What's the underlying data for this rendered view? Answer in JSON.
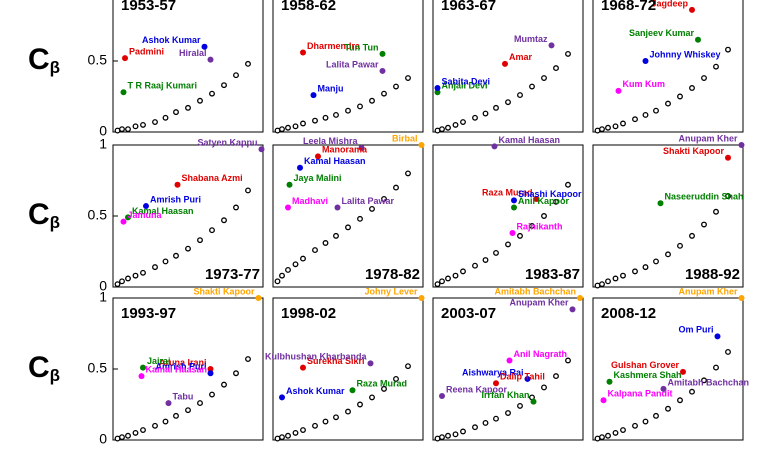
{
  "chart_data": [
    {
      "type": "scatter",
      "title": "1953-57",
      "ylabel": "C",
      "ylabel_sub": "β",
      "xlim": [
        0,
        1
      ],
      "ylim": [
        0,
        1
      ],
      "yticks": [
        0,
        0.5
      ],
      "x": [
        0.03,
        0.06,
        0.1,
        0.15,
        0.2,
        0.28,
        0.35,
        0.42,
        0.5,
        0.58,
        0.66,
        0.74,
        0.82,
        0.9
      ],
      "values": [
        0.01,
        0.02,
        0.02,
        0.04,
        0.05,
        0.07,
        0.1,
        0.14,
        0.17,
        0.22,
        0.27,
        0.33,
        0.4,
        0.48
      ],
      "series": [
        {
          "name": "Padmini",
          "color": "#e00000",
          "x": [
            0.08
          ],
          "values": [
            0.52
          ]
        },
        {
          "name": "Ashok Kumar",
          "color": "#0000e0",
          "x": [
            0.61
          ],
          "values": [
            0.6
          ]
        },
        {
          "name": "Hiralal",
          "color": "#7030a0",
          "x": [
            0.65
          ],
          "values": [
            0.51
          ]
        },
        {
          "name": "T R Raaj Kumari",
          "color": "#008000",
          "x": [
            0.07
          ],
          "values": [
            0.28
          ]
        }
      ]
    },
    {
      "type": "scatter",
      "title": "1958-62",
      "xlim": [
        0,
        1
      ],
      "ylim": [
        0,
        1
      ],
      "x": [
        0.03,
        0.06,
        0.1,
        0.15,
        0.2,
        0.28,
        0.35,
        0.42,
        0.5,
        0.58,
        0.66,
        0.74,
        0.82,
        0.9
      ],
      "values": [
        0.01,
        0.02,
        0.03,
        0.04,
        0.06,
        0.08,
        0.1,
        0.12,
        0.15,
        0.18,
        0.22,
        0.27,
        0.32,
        0.38
      ],
      "series": [
        {
          "name": "Dharmendra",
          "color": "#e00000",
          "x": [
            0.2
          ],
          "values": [
            0.56
          ]
        },
        {
          "name": "Tun Tun",
          "color": "#008000",
          "x": [
            0.73
          ],
          "values": [
            0.55
          ]
        },
        {
          "name": "Lalita Pawar",
          "color": "#7030a0",
          "x": [
            0.73
          ],
          "values": [
            0.43
          ]
        },
        {
          "name": "Manju",
          "color": "#0000e0",
          "x": [
            0.27
          ],
          "values": [
            0.26
          ]
        }
      ]
    },
    {
      "type": "scatter",
      "title": "1963-67",
      "xlim": [
        0,
        1
      ],
      "ylim": [
        0,
        1
      ],
      "x": [
        0.03,
        0.06,
        0.1,
        0.15,
        0.2,
        0.28,
        0.35,
        0.42,
        0.5,
        0.58,
        0.66,
        0.74,
        0.82,
        0.9
      ],
      "values": [
        0.01,
        0.02,
        0.03,
        0.05,
        0.07,
        0.1,
        0.13,
        0.17,
        0.21,
        0.26,
        0.32,
        0.38,
        0.45,
        0.55
      ],
      "series": [
        {
          "name": "Amar",
          "color": "#e00000",
          "x": [
            0.48
          ],
          "values": [
            0.48
          ]
        },
        {
          "name": "Mumtaz",
          "color": "#7030a0",
          "x": [
            0.79
          ],
          "values": [
            0.61
          ]
        },
        {
          "name": "Anjali Devi",
          "color": "#008000",
          "x": [
            0.03
          ],
          "values": [
            0.28
          ]
        },
        {
          "name": "Sabita Devi",
          "color": "#0000e0",
          "x": [
            0.03
          ],
          "values": [
            0.31
          ]
        }
      ]
    },
    {
      "type": "scatter",
      "title": "1968-72",
      "xlim": [
        0,
        1
      ],
      "ylim": [
        0,
        1
      ],
      "x": [
        0.03,
        0.06,
        0.1,
        0.15,
        0.2,
        0.28,
        0.35,
        0.42,
        0.5,
        0.58,
        0.66,
        0.74,
        0.82,
        0.9
      ],
      "values": [
        0.01,
        0.02,
        0.03,
        0.04,
        0.06,
        0.09,
        0.12,
        0.15,
        0.2,
        0.25,
        0.31,
        0.38,
        0.46,
        0.58
      ],
      "series": [
        {
          "name": "Jagdeep",
          "color": "#e00000",
          "x": [
            0.66
          ],
          "values": [
            0.86
          ]
        },
        {
          "name": "Sanjeev Kumar",
          "color": "#008000",
          "x": [
            0.7
          ],
          "values": [
            0.65
          ]
        },
        {
          "name": "Johnny Whiskey",
          "color": "#0000e0",
          "x": [
            0.35
          ],
          "values": [
            0.5
          ]
        },
        {
          "name": "Kum Kum",
          "color": "#ff00ff",
          "x": [
            0.17
          ],
          "values": [
            0.29
          ]
        }
      ]
    },
    {
      "type": "scatter",
      "title": "1973-77",
      "ylabel": "C",
      "ylabel_sub": "β",
      "xlim": [
        0,
        1
      ],
      "ylim": [
        0,
        1
      ],
      "yticks": [
        0,
        0.5,
        1
      ],
      "x": [
        0.03,
        0.06,
        0.1,
        0.15,
        0.2,
        0.28,
        0.35,
        0.42,
        0.5,
        0.58,
        0.66,
        0.74,
        0.82,
        0.9
      ],
      "values": [
        0.02,
        0.04,
        0.06,
        0.08,
        0.1,
        0.14,
        0.18,
        0.22,
        0.27,
        0.33,
        0.4,
        0.47,
        0.56,
        0.68
      ],
      "series": [
        {
          "name": "Satyen Kappu",
          "color": "#7030a0",
          "x": [
            0.99
          ],
          "values": [
            0.97
          ]
        },
        {
          "name": "Shabana Azmi",
          "color": "#e00000",
          "x": [
            0.43
          ],
          "values": [
            0.72
          ]
        },
        {
          "name": "Amrish Puri",
          "color": "#0000e0",
          "x": [
            0.22
          ],
          "values": [
            0.57
          ]
        },
        {
          "name": "Kamal Haasan",
          "color": "#008000",
          "x": [
            0.1
          ],
          "values": [
            0.49
          ]
        },
        {
          "name": "Jamuna",
          "color": "#ff00ff",
          "x": [
            0.07
          ],
          "values": [
            0.46
          ]
        }
      ]
    },
    {
      "type": "scatter",
      "title": "1978-82",
      "xlim": [
        0,
        1
      ],
      "ylim": [
        0,
        1
      ],
      "x": [
        0.03,
        0.06,
        0.1,
        0.15,
        0.2,
        0.28,
        0.35,
        0.42,
        0.5,
        0.58,
        0.66,
        0.74,
        0.82,
        0.9
      ],
      "values": [
        0.04,
        0.08,
        0.12,
        0.16,
        0.2,
        0.26,
        0.31,
        0.36,
        0.42,
        0.48,
        0.55,
        0.62,
        0.7,
        0.8
      ],
      "series": [
        {
          "name": "Birbal",
          "color": "#ffa500",
          "x": [
            0.99
          ],
          "values": [
            1.0
          ]
        },
        {
          "name": "Leela Mishra",
          "color": "#7030a0",
          "x": [
            0.59
          ],
          "values": [
            0.98
          ]
        },
        {
          "name": "Manorama",
          "color": "#e00000",
          "x": [
            0.3
          ],
          "values": [
            0.92
          ]
        },
        {
          "name": "Kamal Haasan",
          "color": "#0000e0",
          "x": [
            0.18
          ],
          "values": [
            0.84
          ]
        },
        {
          "name": "Jaya Malini",
          "color": "#008000",
          "x": [
            0.11
          ],
          "values": [
            0.72
          ]
        },
        {
          "name": "Madhavi",
          "color": "#ff00ff",
          "x": [
            0.1
          ],
          "values": [
            0.56
          ]
        },
        {
          "name": "Lalita Pawar",
          "color": "#7030a0",
          "x": [
            0.43
          ],
          "values": [
            0.56
          ]
        }
      ]
    },
    {
      "type": "scatter",
      "title": "1983-87",
      "xlim": [
        0,
        1
      ],
      "ylim": [
        0,
        1
      ],
      "x": [
        0.03,
        0.06,
        0.1,
        0.15,
        0.2,
        0.28,
        0.35,
        0.42,
        0.5,
        0.58,
        0.66,
        0.74,
        0.82,
        0.9
      ],
      "values": [
        0.02,
        0.04,
        0.06,
        0.08,
        0.11,
        0.15,
        0.19,
        0.24,
        0.3,
        0.36,
        0.43,
        0.5,
        0.6,
        0.72
      ],
      "series": [
        {
          "name": "Kamal Haasan",
          "color": "#7030a0",
          "x": [
            0.41
          ],
          "values": [
            0.99
          ]
        },
        {
          "name": "Raza Murad",
          "color": "#e00000",
          "x": [
            0.69
          ],
          "values": [
            0.62
          ]
        },
        {
          "name": "Shashi Kapoor",
          "color": "#0000e0",
          "x": [
            0.54
          ],
          "values": [
            0.61
          ]
        },
        {
          "name": "Anil Kapoor",
          "color": "#008000",
          "x": [
            0.54
          ],
          "values": [
            0.56
          ]
        },
        {
          "name": "Rajnikanth",
          "color": "#ff00ff",
          "x": [
            0.53
          ],
          "values": [
            0.38
          ]
        }
      ]
    },
    {
      "type": "scatter",
      "title": "1988-92",
      "xlim": [
        0,
        1
      ],
      "ylim": [
        0,
        1
      ],
      "x": [
        0.03,
        0.06,
        0.1,
        0.15,
        0.2,
        0.28,
        0.35,
        0.42,
        0.5,
        0.58,
        0.66,
        0.74,
        0.82,
        0.9
      ],
      "values": [
        0.01,
        0.02,
        0.04,
        0.06,
        0.08,
        0.11,
        0.14,
        0.18,
        0.23,
        0.29,
        0.36,
        0.44,
        0.53,
        0.64
      ],
      "series": [
        {
          "name": "Anupam Kher",
          "color": "#7030a0",
          "x": [
            0.99
          ],
          "values": [
            1.0
          ]
        },
        {
          "name": "Shakti Kapoor",
          "color": "#e00000",
          "x": [
            0.9
          ],
          "values": [
            0.91
          ]
        },
        {
          "name": "Naseeruddin Shah",
          "color": "#008000",
          "x": [
            0.45
          ],
          "values": [
            0.59
          ]
        }
      ]
    },
    {
      "type": "scatter",
      "title": "1993-97",
      "ylabel": "C",
      "ylabel_sub": "β",
      "xlim": [
        0,
        1
      ],
      "ylim": [
        0,
        1
      ],
      "yticks": [
        0,
        0.5,
        1
      ],
      "x": [
        0.03,
        0.06,
        0.1,
        0.15,
        0.2,
        0.28,
        0.35,
        0.42,
        0.5,
        0.58,
        0.66,
        0.74,
        0.82,
        0.9
      ],
      "values": [
        0.01,
        0.02,
        0.03,
        0.05,
        0.07,
        0.1,
        0.13,
        0.17,
        0.21,
        0.26,
        0.32,
        0.39,
        0.47,
        0.57
      ],
      "series": [
        {
          "name": "Shakti Kapoor",
          "color": "#ffa500",
          "x": [
            0.97
          ],
          "values": [
            1.0
          ]
        },
        {
          "name": "Aruna Irani",
          "color": "#e00000",
          "x": [
            0.65
          ],
          "values": [
            0.5
          ]
        },
        {
          "name": "Jairaj",
          "color": "#008000",
          "x": [
            0.2
          ],
          "values": [
            0.51
          ]
        },
        {
          "name": "Amrish Puri",
          "color": "#0000e0",
          "x": [
            0.65
          ],
          "values": [
            0.47
          ]
        },
        {
          "name": "Kamal Haasan",
          "color": "#ff00ff",
          "x": [
            0.19
          ],
          "values": [
            0.45
          ]
        },
        {
          "name": "Tabu",
          "color": "#7030a0",
          "x": [
            0.37
          ],
          "values": [
            0.26
          ]
        }
      ]
    },
    {
      "type": "scatter",
      "title": "1998-02",
      "xlim": [
        0,
        1
      ],
      "ylim": [
        0,
        1
      ],
      "x": [
        0.03,
        0.06,
        0.1,
        0.15,
        0.2,
        0.28,
        0.35,
        0.42,
        0.5,
        0.58,
        0.66,
        0.74,
        0.82,
        0.9
      ],
      "values": [
        0.01,
        0.02,
        0.03,
        0.05,
        0.07,
        0.1,
        0.13,
        0.16,
        0.2,
        0.25,
        0.3,
        0.36,
        0.43,
        0.52
      ],
      "series": [
        {
          "name": "Johny Lever",
          "color": "#ffa500",
          "x": [
            0.99
          ],
          "values": [
            1.0
          ]
        },
        {
          "name": "Surekha Sikri",
          "color": "#e00000",
          "x": [
            0.2
          ],
          "values": [
            0.51
          ]
        },
        {
          "name": "Kulbhushan Kharbanda",
          "color": "#7030a0",
          "x": [
            0.65
          ],
          "values": [
            0.54
          ]
        },
        {
          "name": "Raza Murad",
          "color": "#008000",
          "x": [
            0.53
          ],
          "values": [
            0.35
          ]
        },
        {
          "name": "Ashok Kumar",
          "color": "#0000e0",
          "x": [
            0.06
          ],
          "values": [
            0.3
          ]
        }
      ]
    },
    {
      "type": "scatter",
      "title": "2003-07",
      "xlim": [
        0,
        1
      ],
      "ylim": [
        0,
        1
      ],
      "x": [
        0.03,
        0.06,
        0.1,
        0.15,
        0.2,
        0.28,
        0.35,
        0.42,
        0.5,
        0.58,
        0.66,
        0.74,
        0.82,
        0.9
      ],
      "values": [
        0.01,
        0.02,
        0.03,
        0.04,
        0.06,
        0.09,
        0.12,
        0.15,
        0.19,
        0.24,
        0.3,
        0.37,
        0.45,
        0.56
      ],
      "series": [
        {
          "name": "Amitabh Bachchan",
          "color": "#ffa500",
          "x": [
            0.98
          ],
          "values": [
            1.0
          ]
        },
        {
          "name": "Anupam Kher",
          "color": "#7030a0",
          "x": [
            0.93
          ],
          "values": [
            0.92
          ]
        },
        {
          "name": "Anil Nagrath",
          "color": "#ff00ff",
          "x": [
            0.51
          ],
          "values": [
            0.56
          ]
        },
        {
          "name": "Aishwarya Rai",
          "color": "#0000e0",
          "x": [
            0.63
          ],
          "values": [
            0.43
          ]
        },
        {
          "name": "Dalip Tahil",
          "color": "#e00000",
          "x": [
            0.42
          ],
          "values": [
            0.4
          ]
        },
        {
          "name": "Reena Kapoor",
          "color": "#7030a0",
          "x": [
            0.06
          ],
          "values": [
            0.31
          ]
        },
        {
          "name": "Irrfan Khan",
          "color": "#008000",
          "x": [
            0.67
          ],
          "values": [
            0.27
          ]
        }
      ]
    },
    {
      "type": "scatter",
      "title": "2008-12",
      "xlim": [
        0,
        1
      ],
      "ylim": [
        0,
        1
      ],
      "x": [
        0.03,
        0.06,
        0.1,
        0.15,
        0.2,
        0.28,
        0.35,
        0.42,
        0.5,
        0.58,
        0.66,
        0.74,
        0.82,
        0.9
      ],
      "values": [
        0.01,
        0.02,
        0.03,
        0.05,
        0.07,
        0.1,
        0.13,
        0.17,
        0.22,
        0.28,
        0.34,
        0.42,
        0.51,
        0.62
      ],
      "series": [
        {
          "name": "Anupam Kher",
          "color": "#ffa500",
          "x": [
            0.99
          ],
          "values": [
            1.0
          ]
        },
        {
          "name": "Om Puri",
          "color": "#0000e0",
          "x": [
            0.83
          ],
          "values": [
            0.73
          ]
        },
        {
          "name": "Gulshan Grover",
          "color": "#e00000",
          "x": [
            0.6
          ],
          "values": [
            0.48
          ]
        },
        {
          "name": "Amitabh Bachchan",
          "color": "#7030a0",
          "x": [
            0.47
          ],
          "values": [
            0.36
          ]
        },
        {
          "name": "Kashmera Shah",
          "color": "#008000",
          "x": [
            0.11
          ],
          "values": [
            0.41
          ]
        },
        {
          "name": "Kalpana Pandit",
          "color": "#ff00ff",
          "x": [
            0.07
          ],
          "values": [
            0.28
          ]
        }
      ]
    }
  ]
}
